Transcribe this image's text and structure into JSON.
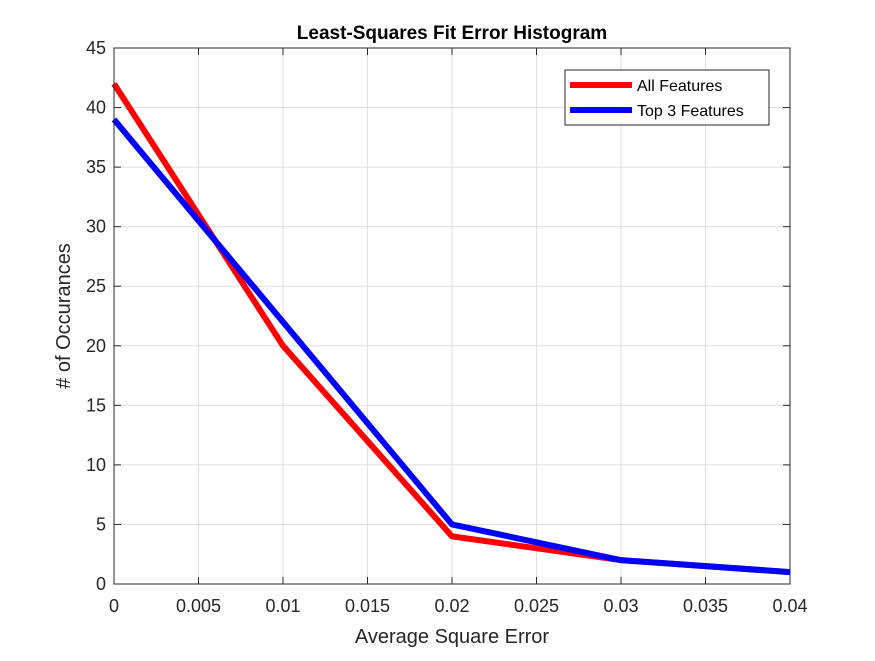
{
  "chart_data": {
    "type": "line",
    "title": "Least-Squares Fit Error Histogram",
    "xlabel": "Average Square Error",
    "ylabel": "# of Occurances",
    "xlim": [
      0,
      0.04
    ],
    "ylim": [
      0,
      45
    ],
    "x_ticks": [
      0,
      0.005,
      0.01,
      0.015,
      0.02,
      0.025,
      0.03,
      0.035,
      0.04
    ],
    "x_tick_labels": [
      "0",
      "0.005",
      "0.01",
      "0.015",
      "0.02",
      "0.025",
      "0.03",
      "0.035",
      "0.04"
    ],
    "y_ticks": [
      0,
      5,
      10,
      15,
      20,
      25,
      30,
      35,
      40,
      45
    ],
    "y_tick_labels": [
      "0",
      "5",
      "10",
      "15",
      "20",
      "25",
      "30",
      "35",
      "40",
      "45"
    ],
    "grid": true,
    "legend_position": "top-right",
    "series": [
      {
        "name": "All Features",
        "color": "#ff0000",
        "x": [
          0,
          0.01,
          0.02,
          0.03,
          0.04
        ],
        "y": [
          42,
          20,
          4,
          2,
          1
        ]
      },
      {
        "name": "Top 3 Features",
        "color": "#0000ff",
        "x": [
          0,
          0.01,
          0.02,
          0.03,
          0.04
        ],
        "y": [
          39,
          22,
          5,
          2,
          1
        ]
      }
    ]
  }
}
